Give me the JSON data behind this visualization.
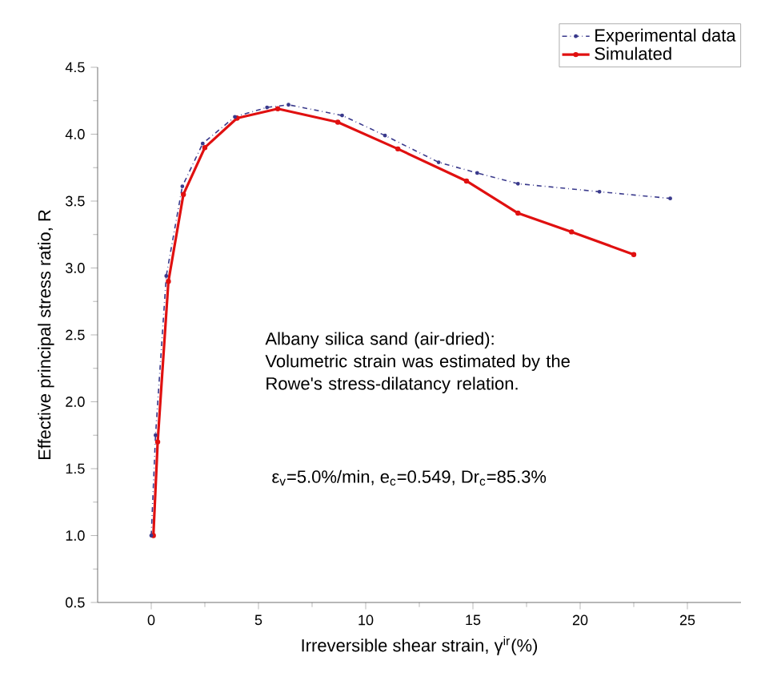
{
  "chart_data": {
    "type": "line",
    "xlabel": "Irreversible shear strain, γ$^{ir}$(%)",
    "ylabel": "Effective principal stress ratio, R",
    "xlim": [
      -2.5,
      27.5
    ],
    "xticks": [
      0,
      5,
      10,
      15,
      20,
      25
    ],
    "ylim": [
      0.5,
      4.5
    ],
    "yticks": [
      {
        "value": 0.5,
        "label": "0.5"
      },
      {
        "value": 1,
        "label": "1.0"
      },
      {
        "value": 1.5,
        "label": "1.5"
      },
      {
        "value": 2,
        "label": "2.0"
      },
      {
        "value": 2.5,
        "label": "2.5"
      },
      {
        "value": 3,
        "label": "3.0"
      },
      {
        "value": 3.5,
        "label": "3.5"
      },
      {
        "value": 4,
        "label": "4.0"
      },
      {
        "value": 4.5,
        "label": "4.5"
      }
    ],
    "legend": "top right",
    "marker": "circle",
    "series": [
      {
        "name": "Experimental data",
        "color": "#3a3a8c",
        "line_style": "dashed",
        "x": [
          0,
          0.2,
          0.7,
          1.45,
          2.4,
          3.9,
          5.4,
          6.4,
          8.9,
          10.9,
          13.4,
          15.2,
          17.1,
          20.9,
          24.2
        ],
        "values": [
          1.0,
          1.75,
          2.94,
          3.61,
          3.93,
          4.13,
          4.2,
          4.22,
          4.14,
          3.99,
          3.79,
          3.71,
          3.63,
          3.57,
          3.52
        ]
      },
      {
        "name": "Simulated",
        "color": "#e01010",
        "line_style": "solid",
        "x": [
          0.1,
          0.3,
          0.8,
          1.5,
          2.5,
          4,
          5.9,
          8.7,
          11.5,
          14.7,
          17.1,
          19.6,
          22.5
        ],
        "values": [
          1.0,
          1.7,
          2.9,
          3.55,
          3.9,
          4.12,
          4.19,
          4.09,
          3.89,
          3.65,
          3.41,
          3.27,
          3.1
        ]
      }
    ],
    "annotations": [
      "Albany silica sand (air-dried): Volumetric strain was estimated by the Rowe's stress-dilatancy relation.",
      "ε$_{v}$=5.0%/min,     e$_{c}$=0.549, Dr$_{c}$=85.3%"
    ]
  }
}
